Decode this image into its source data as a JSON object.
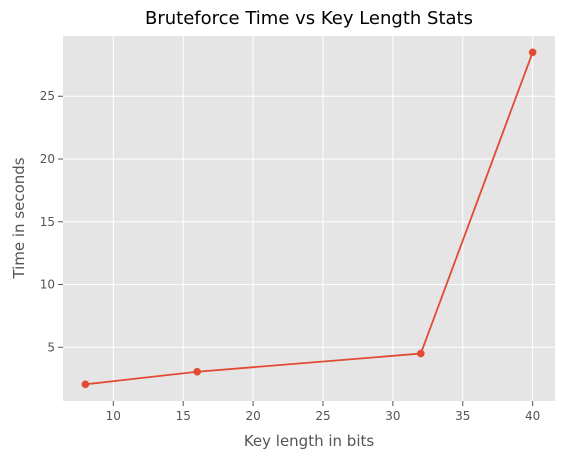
{
  "chart_data": {
    "type": "line",
    "title": "Bruteforce Time vs Key Length Stats",
    "xlabel": "Key length in bits",
    "ylabel": "Time in seconds",
    "x": [
      8,
      16,
      32,
      40
    ],
    "series": [
      {
        "values": [
          2.05,
          3.05,
          4.5,
          28.5
        ],
        "color": "#E24A33",
        "marker": "circle"
      }
    ],
    "xlim": [
      6.4,
      41.6
    ],
    "ylim": [
      0.72,
      29.8
    ],
    "xticks": [
      10,
      15,
      20,
      25,
      30,
      35,
      40
    ],
    "yticks": [
      5,
      10,
      15,
      20,
      25
    ],
    "grid": true,
    "style": {
      "plot_background": "#E5E5E5",
      "grid_color": "#FFFFFF",
      "tick_label_color": "#555555"
    }
  }
}
